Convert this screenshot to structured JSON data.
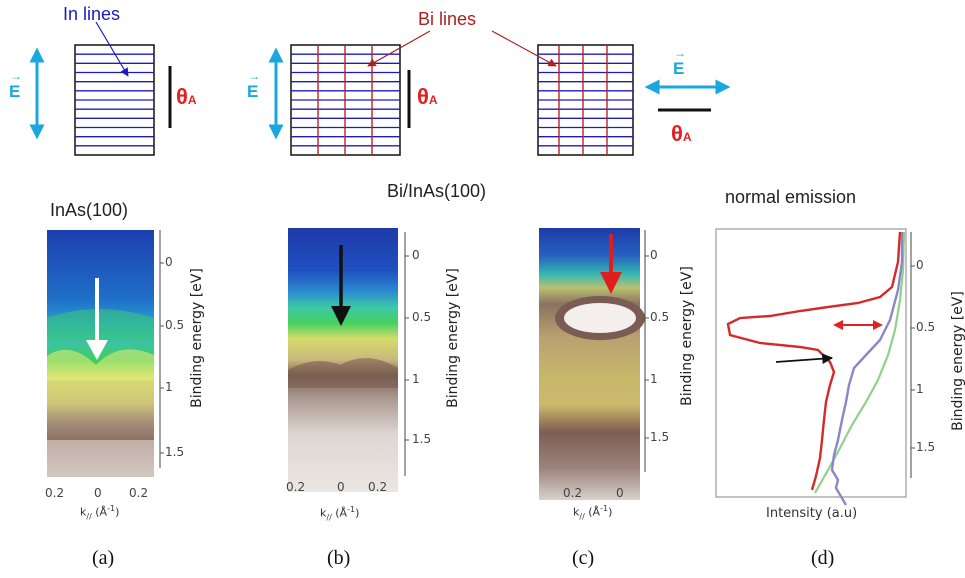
{
  "colors": {
    "in_line": "#1b1bc0",
    "bi_line": "#c41e1e",
    "field_arrow": "#1aa7e0",
    "theta": "#e52020",
    "spectrum_red": "#d42a2a",
    "spectrum_blue": "#8a86c8",
    "spectrum_green": "#8fd18a"
  },
  "schematics": {
    "in_lines_label": "In lines",
    "bi_lines_label": "Bi lines",
    "field_symbol": "E",
    "theta_symbol": "θ",
    "theta_subscript": "A"
  },
  "panels": {
    "a": {
      "title": "InAs(100)",
      "caption": "(a)",
      "x_ticks": [
        "0.2",
        "0",
        "0.2"
      ],
      "y_ticks": [
        "0",
        "0.5",
        "1",
        "1.5"
      ]
    },
    "b": {
      "title": "Bi/InAs(100)",
      "caption": "(b)",
      "x_ticks": [
        "0.2",
        "0",
        "0.2"
      ],
      "y_ticks": [
        "0",
        "0.5",
        "1",
        "1.5"
      ]
    },
    "c": {
      "caption": "(c)",
      "x_ticks": [
        "0.2",
        "0"
      ],
      "y_ticks": [
        "0",
        "0.5",
        "1",
        "1.5"
      ]
    },
    "d": {
      "title": "normal emission",
      "caption": "(d)",
      "y_ticks": [
        "0",
        "0.5",
        "1",
        "1.5"
      ],
      "xlabel": "Intensity (a.u)"
    }
  },
  "axes": {
    "ylabel": "Binding energy [eV]",
    "k_prefix": "k",
    "k_sub": "//",
    "k_unit": "(Å",
    "k_unit_exp": "-1",
    "k_unit_close": ")"
  }
}
